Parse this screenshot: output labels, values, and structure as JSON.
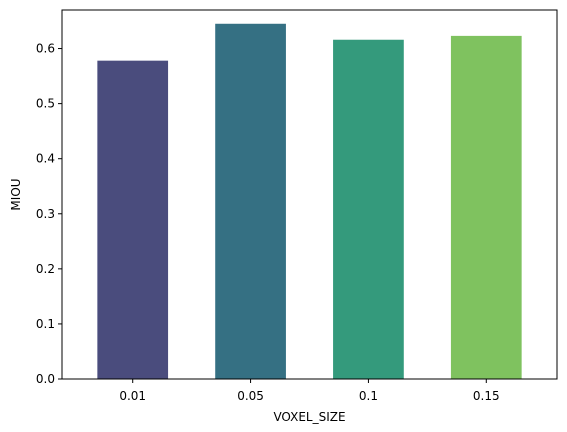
{
  "chart_data": {
    "type": "bar",
    "categories": [
      "0.01",
      "0.05",
      "0.1",
      "0.15"
    ],
    "values": [
      0.578,
      0.645,
      0.616,
      0.623
    ],
    "colors": [
      "#4a4c7d",
      "#357083",
      "#349a7c",
      "#7fc25f"
    ],
    "title": "",
    "xlabel": "VOXEL_SIZE",
    "ylabel": "MIOU",
    "ylim": [
      0,
      0.67
    ],
    "yticks": [
      0.0,
      0.1,
      0.2,
      0.3,
      0.4,
      0.5,
      0.6
    ],
    "ytick_labels": [
      "0.0",
      "0.1",
      "0.2",
      "0.3",
      "0.4",
      "0.5",
      "0.6"
    ],
    "grid": false,
    "legend": "none"
  }
}
